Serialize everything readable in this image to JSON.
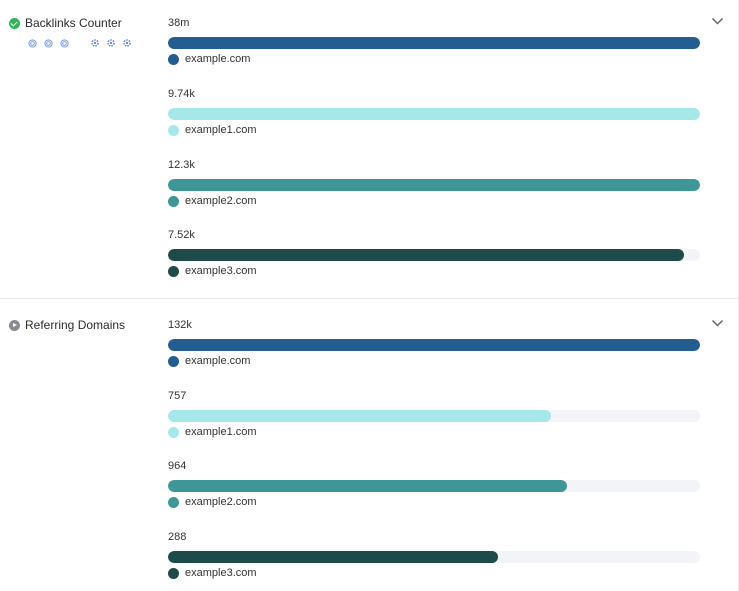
{
  "colors": {
    "example.com": "#245d8f",
    "example1.com": "#a6e8ea",
    "example2.com": "#3e9796",
    "example3.com": "#1f4a4a",
    "ok": "#2fb45a",
    "icon_blue": "#6f8fd0"
  },
  "sections": [
    {
      "title": "Backlinks Counter",
      "status_icon": "check-circle-icon",
      "tool_icons": [
        "target-icon",
        "target-icon",
        "target-icon",
        "gear-icon",
        "gear-icon",
        "gear-icon"
      ],
      "metrics": [
        {
          "value": "38m",
          "label": "example.com",
          "fraction": 1.0
        },
        {
          "value": "9.74k",
          "label": "example1.com",
          "fraction": 1.0
        },
        {
          "value": "12.3k",
          "label": "example2.com",
          "fraction": 1.0
        },
        {
          "value": "7.52k",
          "label": "example3.com",
          "fraction": 0.97
        }
      ]
    },
    {
      "title": "Referring Domains",
      "status_icon": "play-circle-icon",
      "metrics": [
        {
          "value": "132k",
          "label": "example.com",
          "fraction": 1.0
        },
        {
          "value": "757",
          "label": "example1.com",
          "fraction": 0.72
        },
        {
          "value": "964",
          "label": "example2.com",
          "fraction": 0.75
        },
        {
          "value": "288",
          "label": "example3.com",
          "fraction": 0.62
        }
      ]
    }
  ]
}
